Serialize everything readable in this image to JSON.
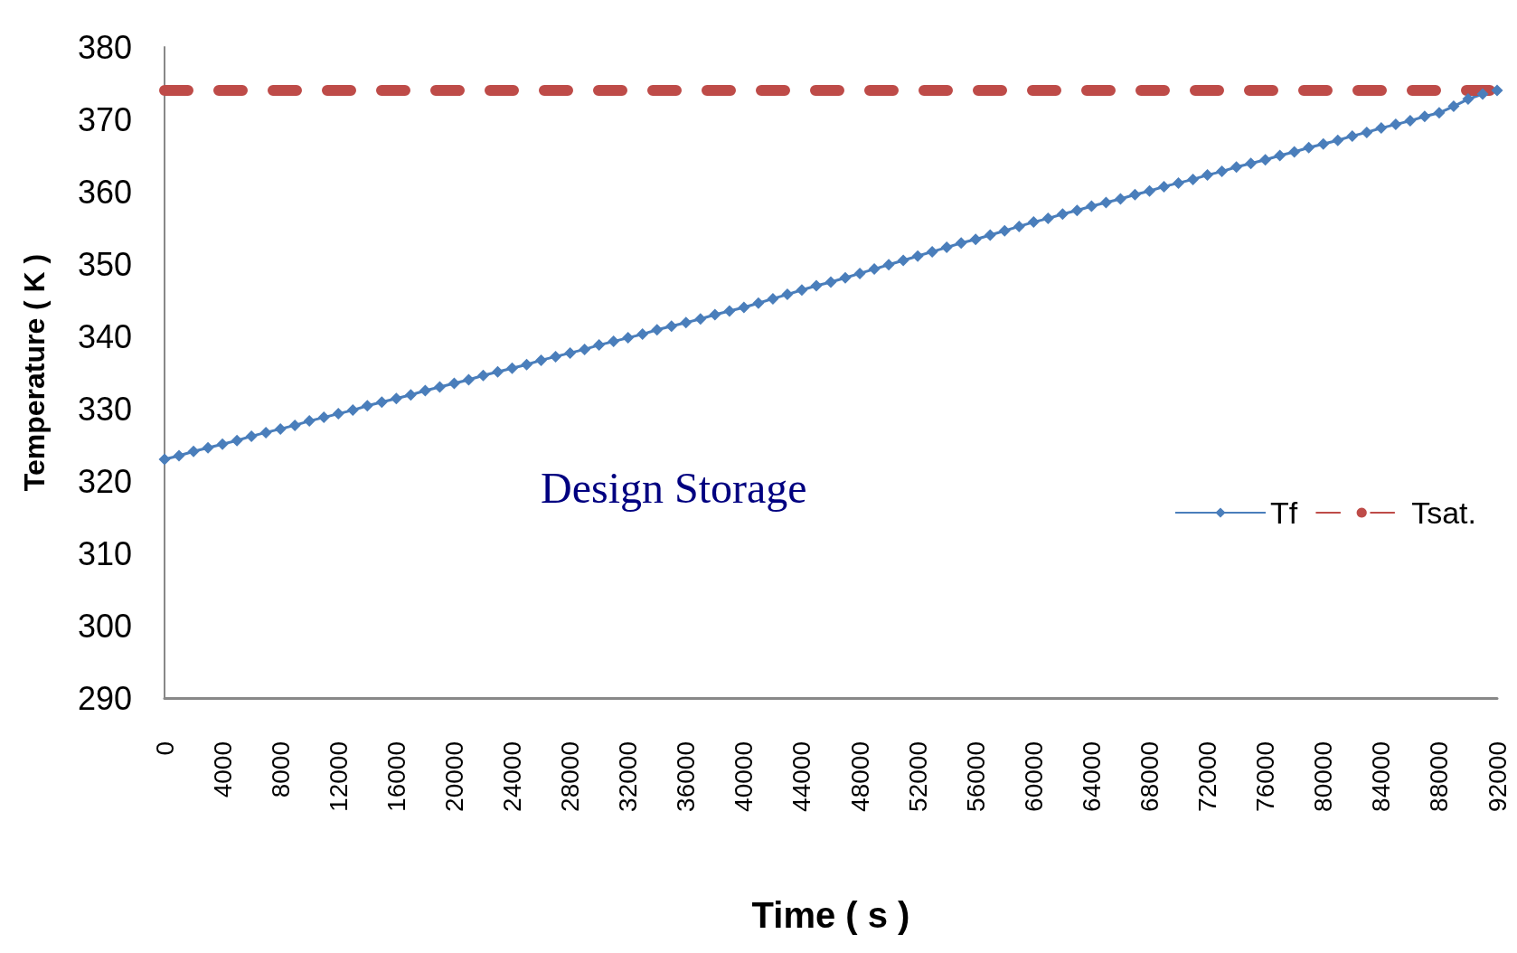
{
  "chart_data": {
    "type": "line",
    "xlabel": "Time ( s )",
    "ylabel": "Temperature ( K )",
    "annotations": [
      "Design Storage"
    ],
    "x": [
      0,
      1000,
      2000,
      3000,
      4000,
      5000,
      6000,
      7000,
      8000,
      9000,
      10000,
      11000,
      12000,
      13000,
      14000,
      15000,
      16000,
      17000,
      18000,
      19000,
      20000,
      21000,
      22000,
      23000,
      24000,
      25000,
      26000,
      27000,
      28000,
      29000,
      30000,
      31000,
      32000,
      33000,
      34000,
      35000,
      36000,
      37000,
      38000,
      39000,
      40000,
      41000,
      42000,
      43000,
      44000,
      45000,
      46000,
      47000,
      48000,
      49000,
      50000,
      51000,
      52000,
      53000,
      54000,
      55000,
      56000,
      57000,
      58000,
      59000,
      60000,
      61000,
      62000,
      63000,
      64000,
      65000,
      66000,
      67000,
      68000,
      69000,
      70000,
      71000,
      72000,
      73000,
      74000,
      75000,
      76000,
      77000,
      78000,
      79000,
      80000,
      81000,
      82000,
      83000,
      84000,
      85000,
      86000,
      87000,
      88000,
      89000,
      90000,
      91000,
      92000
    ],
    "series": [
      {
        "name": "Tf",
        "color": "#4a7ebb",
        "marker": "diamond",
        "line_style": "solid",
        "values": [
          323.0,
          323.5,
          324.1,
          324.6,
          325.1,
          325.6,
          326.2,
          326.7,
          327.2,
          327.7,
          328.3,
          328.8,
          329.3,
          329.8,
          330.4,
          330.9,
          331.4,
          331.9,
          332.5,
          333.0,
          333.5,
          334.0,
          334.6,
          335.1,
          335.6,
          336.1,
          336.7,
          337.2,
          337.7,
          338.2,
          338.8,
          339.3,
          339.8,
          340.3,
          340.9,
          341.4,
          341.9,
          342.4,
          343.0,
          343.5,
          344.0,
          344.6,
          345.2,
          345.8,
          346.4,
          347.0,
          347.5,
          348.1,
          348.7,
          349.3,
          349.9,
          350.5,
          351.1,
          351.7,
          352.3,
          352.9,
          353.4,
          354.0,
          354.6,
          355.2,
          355.8,
          356.3,
          356.9,
          357.4,
          358.0,
          358.5,
          359.0,
          359.6,
          360.1,
          360.7,
          361.2,
          361.7,
          362.3,
          362.8,
          363.4,
          363.9,
          364.4,
          365.0,
          365.5,
          366.1,
          366.6,
          367.1,
          367.7,
          368.2,
          368.8,
          369.3,
          369.8,
          370.4,
          370.9,
          371.8,
          372.8,
          373.5,
          374.0
        ]
      },
      {
        "name": "Tsat.",
        "color": "#be4b48",
        "marker": "none",
        "line_style": "dashed",
        "values": [
          374,
          374,
          374,
          374,
          374,
          374,
          374,
          374,
          374,
          374,
          374,
          374,
          374,
          374,
          374,
          374,
          374,
          374,
          374,
          374,
          374,
          374,
          374,
          374,
          374,
          374,
          374,
          374,
          374,
          374,
          374,
          374,
          374,
          374,
          374,
          374,
          374,
          374,
          374,
          374,
          374,
          374,
          374,
          374,
          374,
          374,
          374,
          374,
          374,
          374,
          374,
          374,
          374,
          374,
          374,
          374,
          374,
          374,
          374,
          374,
          374,
          374,
          374,
          374,
          374,
          374,
          374,
          374,
          374,
          374,
          374,
          374,
          374,
          374,
          374,
          374,
          374,
          374,
          374,
          374,
          374,
          374,
          374,
          374,
          374,
          374,
          374,
          374,
          374,
          374,
          374,
          374,
          374
        ]
      }
    ],
    "xlim": [
      0,
      92000
    ],
    "xticks": [
      0,
      4000,
      8000,
      12000,
      16000,
      20000,
      24000,
      28000,
      32000,
      36000,
      40000,
      44000,
      48000,
      52000,
      56000,
      60000,
      64000,
      68000,
      72000,
      76000,
      80000,
      84000,
      88000,
      92000
    ],
    "ylim": [
      290,
      380
    ],
    "yticks": [
      290,
      300,
      310,
      320,
      330,
      340,
      350,
      360,
      370,
      380
    ],
    "grid": false,
    "legend": "right"
  }
}
